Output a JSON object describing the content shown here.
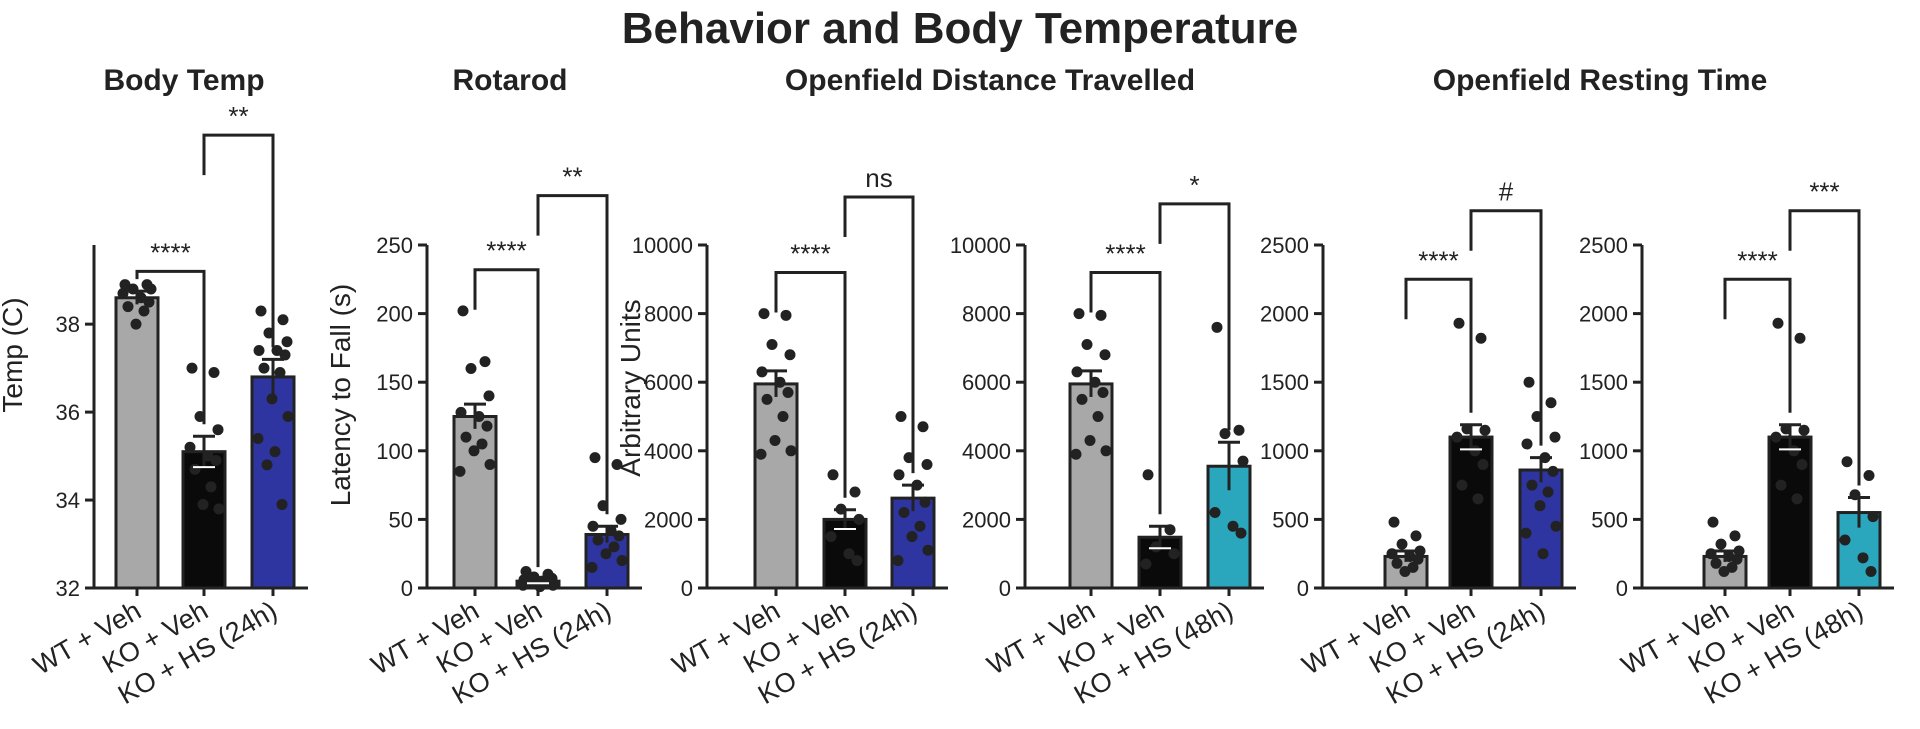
{
  "figure_title": "Behavior and Body Temperature",
  "panel_titles": [
    "Body Temp",
    "Rotarod",
    "Openfield Distance Travelled",
    "Openfield Resting Time"
  ],
  "colors": {
    "gray": "#a8a8a8",
    "black": "#0a0a0a",
    "navy": "#2e35a0",
    "teal": "#2aa7bd",
    "ink": "#222222"
  },
  "chart_data": [
    {
      "type": "bar",
      "ylabel": "Temp (C)",
      "ylim": [
        32,
        39.8
      ],
      "yticks": [
        32,
        34,
        36,
        38
      ],
      "categories": [
        "WT + Veh",
        "KO + Veh",
        "KO + HS (24h)"
      ],
      "bar_colors": [
        "gray",
        "black",
        "navy"
      ],
      "values": [
        38.6,
        35.1,
        36.8
      ],
      "sem": [
        0.15,
        0.35,
        0.4
      ],
      "points": [
        [
          38.9,
          38.9,
          38.8,
          38.8,
          38.7,
          38.6,
          38.5,
          38.4,
          38.3,
          38.0
        ],
        [
          37.0,
          36.9,
          35.9,
          35.6,
          35.2,
          35.0,
          34.9,
          34.7,
          34.3,
          33.9,
          33.8
        ],
        [
          38.3,
          38.1,
          37.8,
          37.6,
          37.4,
          37.4,
          37.3,
          37.0,
          36.9,
          36.3,
          35.9,
          35.4,
          35.1,
          34.8,
          33.9
        ]
      ],
      "comparisons": [
        {
          "from": 0,
          "to": 1,
          "level": 39.2,
          "label": "****"
        },
        {
          "from": 1,
          "to": 2,
          "level": 42.3,
          "label": "**"
        }
      ]
    },
    {
      "type": "bar",
      "ylabel": "Latency to Fall (s)",
      "ylim": [
        0,
        250
      ],
      "yticks": [
        0,
        50,
        100,
        150,
        200,
        250
      ],
      "categories": [
        "WT + Veh",
        "KO + Veh",
        "KO + HS (24h)"
      ],
      "bar_colors": [
        "gray",
        "black",
        "navy"
      ],
      "values": [
        125,
        5,
        39
      ],
      "sem": [
        9,
        1.5,
        6
      ],
      "points": [
        [
          202,
          165,
          160,
          140,
          128,
          125,
          118,
          110,
          105,
          100,
          90,
          85
        ],
        [
          12,
          10,
          8,
          7,
          6,
          5,
          4,
          4,
          3,
          3,
          2,
          2,
          1
        ],
        [
          95,
          90,
          60,
          50,
          45,
          42,
          38,
          35,
          30,
          25,
          20,
          15
        ]
      ],
      "comparisons": [
        {
          "from": 0,
          "to": 1,
          "level": 232,
          "label": "****"
        },
        {
          "from": 1,
          "to": 2,
          "level": 286,
          "label": "**"
        }
      ]
    },
    {
      "type": "bar",
      "ylabel": "Arbitrary Units",
      "ylim": [
        0,
        10000
      ],
      "yticks": [
        0,
        2000,
        4000,
        6000,
        8000,
        10000
      ],
      "categories": [
        "WT + Veh",
        "KO + Veh",
        "KO + HS (24h)"
      ],
      "bar_colors": [
        "gray",
        "black",
        "navy"
      ],
      "values": [
        5950,
        2000,
        2620
      ],
      "sem": [
        380,
        280,
        380
      ],
      "points": [
        [
          8000,
          7950,
          7100,
          6800,
          6300,
          6000,
          5700,
          5500,
          5000,
          4300,
          4000,
          3900
        ],
        [
          3300,
          2800,
          2300,
          2000,
          1500,
          1000,
          800
        ],
        [
          5000,
          4700,
          3800,
          3600,
          3300,
          3000,
          2500,
          2200,
          1800,
          1500,
          1100,
          800
        ]
      ],
      "comparisons": [
        {
          "from": 0,
          "to": 1,
          "level": 9200,
          "label": "****"
        },
        {
          "from": 1,
          "to": 2,
          "level": 11400,
          "label": "ns"
        }
      ]
    },
    {
      "type": "bar",
      "ylabel": "",
      "ylim": [
        0,
        10000
      ],
      "yticks": [
        0,
        2000,
        4000,
        6000,
        8000,
        10000
      ],
      "categories": [
        "WT + Veh",
        "KO + Veh",
        "KO + HS (48h)"
      ],
      "bar_colors": [
        "gray",
        "black",
        "teal"
      ],
      "values": [
        5950,
        1480,
        3550
      ],
      "sem": [
        380,
        320,
        700
      ],
      "points": [
        [
          8000,
          7950,
          7100,
          6800,
          6300,
          6000,
          5700,
          5500,
          5000,
          4300,
          4000,
          3900
        ],
        [
          3300,
          1700,
          1200,
          1000,
          700
        ],
        [
          7600,
          4600,
          4500,
          3700,
          2200,
          1800,
          1600
        ]
      ],
      "comparisons": [
        {
          "from": 0,
          "to": 1,
          "level": 9200,
          "label": "****"
        },
        {
          "from": 1,
          "to": 2,
          "level": 11200,
          "label": "*"
        }
      ]
    },
    {
      "type": "bar",
      "ylabel": "",
      "ylim": [
        0,
        2500
      ],
      "yticks": [
        0,
        500,
        1000,
        1500,
        2000,
        2500
      ],
      "categories": [
        "WT + Veh",
        "KO + Veh",
        "KO + HS (24h)"
      ],
      "bar_colors": [
        "gray",
        "black",
        "navy"
      ],
      "values": [
        230,
        1100,
        860
      ],
      "sem": [
        40,
        90,
        90
      ],
      "points": [
        [
          480,
          380,
          320,
          270,
          250,
          230,
          210,
          180,
          150,
          120
        ],
        [
          1930,
          1820,
          1160,
          1150,
          1100,
          1000,
          900,
          750,
          650
        ],
        [
          1500,
          1350,
          1250,
          1100,
          1050,
          950,
          850,
          750,
          700,
          600,
          450,
          400,
          250
        ]
      ],
      "comparisons": [
        {
          "from": 0,
          "to": 1,
          "level": 2250,
          "label": "****"
        },
        {
          "from": 1,
          "to": 2,
          "level": 2750,
          "label": "#"
        }
      ]
    },
    {
      "type": "bar",
      "ylabel": "",
      "ylim": [
        0,
        2500
      ],
      "yticks": [
        0,
        500,
        1000,
        1500,
        2000,
        2500
      ],
      "categories": [
        "WT + Veh",
        "KO + Veh",
        "KO + HS (48h)"
      ],
      "bar_colors": [
        "gray",
        "black",
        "teal"
      ],
      "values": [
        230,
        1100,
        550
      ],
      "sem": [
        40,
        90,
        110
      ],
      "points": [
        [
          480,
          380,
          320,
          270,
          250,
          230,
          210,
          180,
          150,
          120
        ],
        [
          1930,
          1820,
          1160,
          1150,
          1100,
          1000,
          900,
          750,
          650
        ],
        [
          920,
          820,
          680,
          520,
          350,
          220,
          120
        ]
      ],
      "comparisons": [
        {
          "from": 0,
          "to": 1,
          "level": 2250,
          "label": "****"
        },
        {
          "from": 1,
          "to": 2,
          "level": 2750,
          "label": "***"
        }
      ]
    }
  ]
}
